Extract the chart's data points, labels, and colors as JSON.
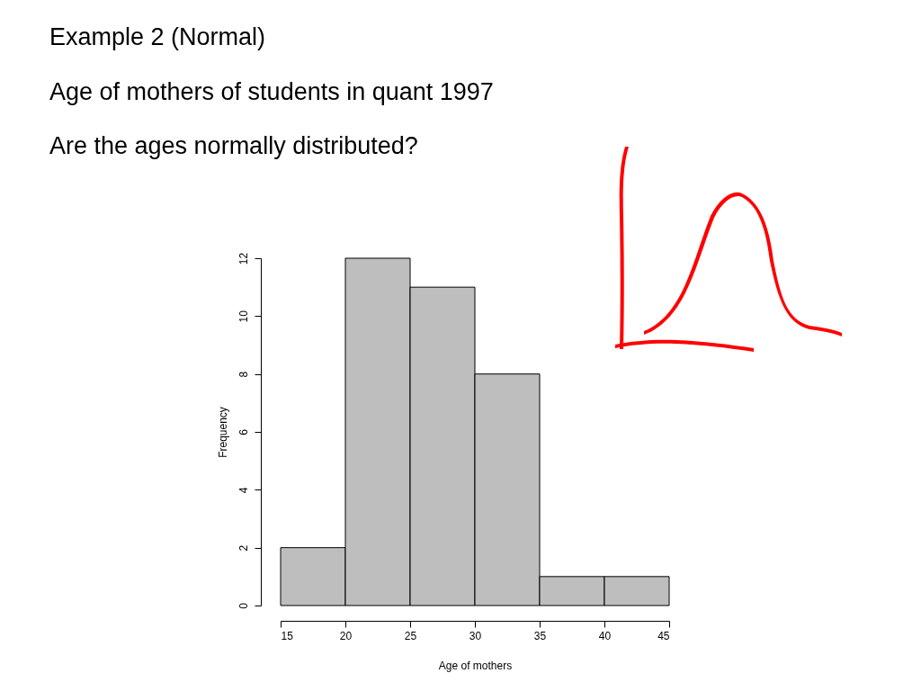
{
  "chart_data": {
    "type": "histogram",
    "title": "Example 2 (Normal)",
    "subtitle": "Age of mothers of students in quant 1997",
    "annotations": [
      "Are the ages normally distributed?"
    ],
    "xlabel": "Age of mothers",
    "ylabel": "Frequency",
    "bins": [
      15,
      20,
      25,
      30,
      35,
      40,
      45
    ],
    "values": [
      2,
      12,
      11,
      8,
      1,
      1
    ],
    "color": "#bebebe",
    "xlim": [
      15,
      45
    ],
    "xticks": [
      15,
      20,
      25,
      30,
      35,
      40,
      45
    ],
    "ylim": [
      0,
      12
    ],
    "yticks": [
      0,
      2,
      4,
      6,
      8,
      10,
      12
    ]
  }
}
